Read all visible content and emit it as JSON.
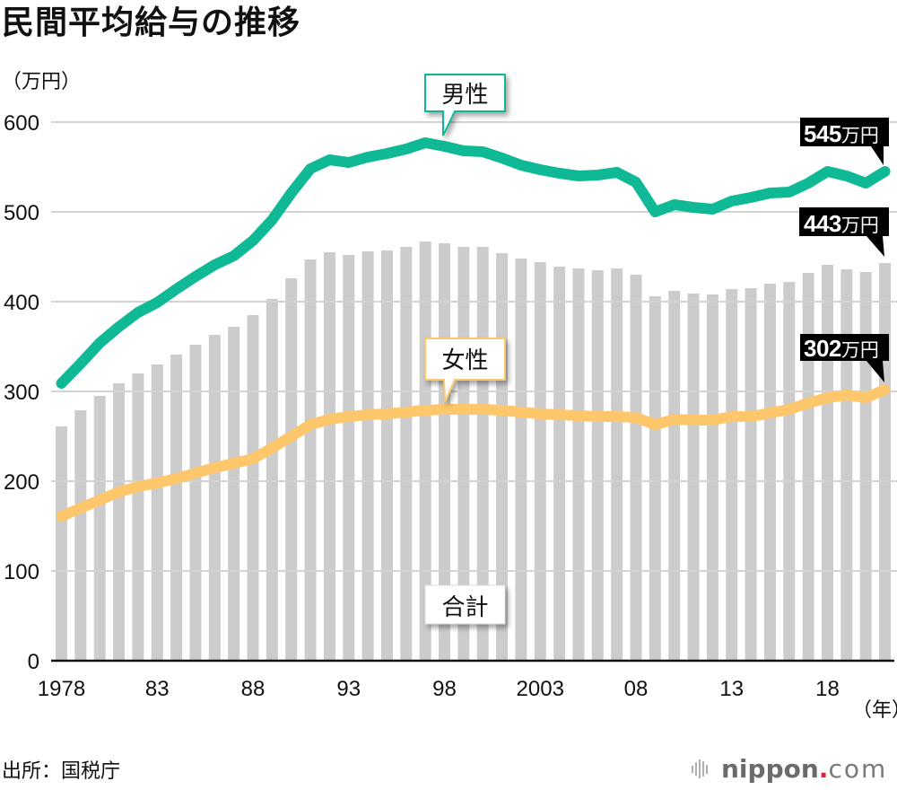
{
  "source": "出所：国税庁",
  "logo": {
    "brand": "nippon",
    "dot": ".",
    "suffix": "com",
    "icon": "sound-bars-icon"
  },
  "colors": {
    "male": "#10b995",
    "female": "#fec76b",
    "total": "#cccccc",
    "callout_bg": "#000000",
    "logo_dot": "#e8202a",
    "label_box_total_border": "#dddddd"
  },
  "chart_data": {
    "type": "bar",
    "title": "民間平均給与の推移",
    "ylabel": "（万円）",
    "xlabel": "（年）",
    "ylim": [
      0,
      600
    ],
    "yticks": [
      0,
      100,
      200,
      300,
      400,
      500,
      600
    ],
    "yticklabels": [
      "0",
      "100",
      "200",
      "300",
      "400",
      "500",
      "600"
    ],
    "grid": true,
    "legend": "inline labels",
    "x": [
      1978,
      1979,
      1980,
      1981,
      1982,
      1983,
      1984,
      1985,
      1986,
      1987,
      1988,
      1989,
      1990,
      1991,
      1992,
      1993,
      1994,
      1995,
      1996,
      1997,
      1998,
      1999,
      2000,
      2001,
      2002,
      2003,
      2004,
      2005,
      2006,
      2007,
      2008,
      2009,
      2010,
      2011,
      2012,
      2013,
      2014,
      2015,
      2016,
      2017,
      2018,
      2019,
      2020,
      2021
    ],
    "xticks": [
      1978,
      1983,
      1988,
      1993,
      1998,
      2003,
      2008,
      2013,
      2018
    ],
    "xticklabels": [
      "1978",
      "83",
      "88",
      "93",
      "98",
      "2003",
      "08",
      "13",
      "18"
    ],
    "series": [
      {
        "key": "total",
        "name": "合計",
        "type": "bar",
        "color": "#cccccc",
        "values": [
          261,
          279,
          295,
          309,
          320,
          330,
          341,
          352,
          363,
          372,
          385,
          403,
          426,
          447,
          455,
          452,
          456,
          457,
          461,
          467,
          465,
          461,
          461,
          454,
          448,
          444,
          439,
          437,
          435,
          437,
          430,
          406,
          412,
          409,
          408,
          414,
          415,
          420,
          422,
          432,
          441,
          436,
          433,
          443
        ]
      },
      {
        "key": "male",
        "name": "男性",
        "type": "line",
        "color": "#10b995",
        "values": [
          309,
          331,
          354,
          372,
          388,
          399,
          414,
          428,
          441,
          451,
          468,
          491,
          521,
          548,
          558,
          555,
          561,
          565,
          570,
          577,
          573,
          568,
          567,
          560,
          552,
          547,
          543,
          540,
          541,
          544,
          533,
          500,
          508,
          505,
          503,
          512,
          516,
          521,
          522,
          532,
          545,
          540,
          532,
          545
        ]
      },
      {
        "key": "female",
        "name": "女性",
        "type": "line",
        "color": "#fec76b",
        "values": [
          161,
          170,
          179,
          188,
          194,
          198,
          203,
          209,
          215,
          220,
          225,
          237,
          250,
          263,
          269,
          272,
          274,
          275,
          277,
          279,
          280,
          280,
          280,
          279,
          277,
          275,
          274,
          273,
          272,
          272,
          271,
          263,
          269,
          268,
          268,
          272,
          272,
          276,
          280,
          287,
          293,
          296,
          293,
          302
        ]
      }
    ],
    "annotations": [
      {
        "series": "男性",
        "x": 2021,
        "value": "545",
        "unit": "万円"
      },
      {
        "series": "合計",
        "x": 2021,
        "value": "443",
        "unit": "万円"
      },
      {
        "series": "女性",
        "x": 2021,
        "value": "302",
        "unit": "万円"
      }
    ]
  }
}
